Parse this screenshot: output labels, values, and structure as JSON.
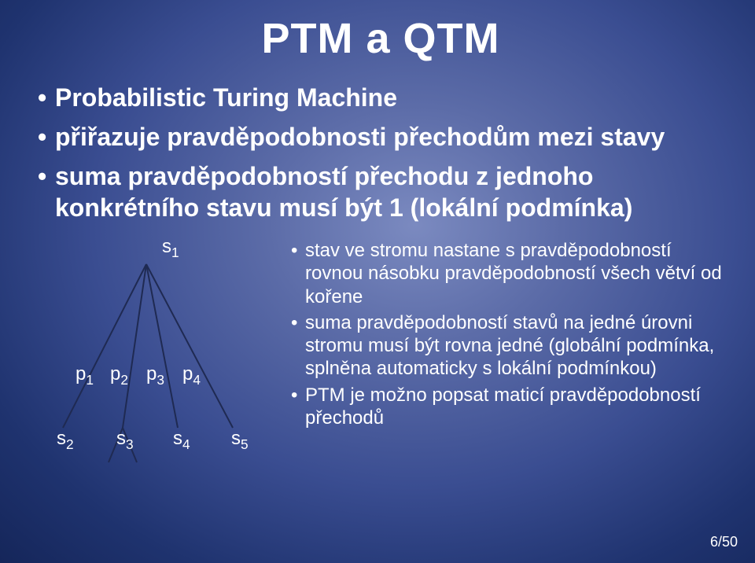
{
  "title": "PTM a QTM",
  "bullets": [
    "Probabilistic Turing Machine",
    "přiřazuje pravděpodobnosti přechodům mezi stavy",
    "suma pravděpodobností přechodu z jednoho konkrétního stavu musí být 1 (lokální podmínka)"
  ],
  "sub_bullets": [
    "stav ve stromu nastane s pravděpodobností rovnou násobku pravděpodobností všech větví od kořene",
    "suma pravděpodobností stavů na jedné úrovni stromu musí být rovna jedné (globální podmínka, splněna automaticky s lokální podmínkou)",
    "PTM je možno popsat maticí pravděpodobností přechodů"
  ],
  "tree": {
    "top_label": "s<span class=\"sub\">1</span>",
    "p_labels": [
      "p<span class=\"sub\">1</span>",
      "p<span class=\"sub\">2</span>",
      "p<span class=\"sub\">3</span>",
      "p<span class=\"sub\">4</span>"
    ],
    "bottom_labels": [
      "s<span class=\"sub\">2</span>",
      "s<span class=\"sub\">3</span>",
      "s<span class=\"sub\">4</span>",
      "s<span class=\"sub\">5</span>"
    ],
    "line_color": "#1f2a52",
    "line_width": 2
  },
  "page": "6/50",
  "colors": {
    "text": "#ffffff"
  }
}
